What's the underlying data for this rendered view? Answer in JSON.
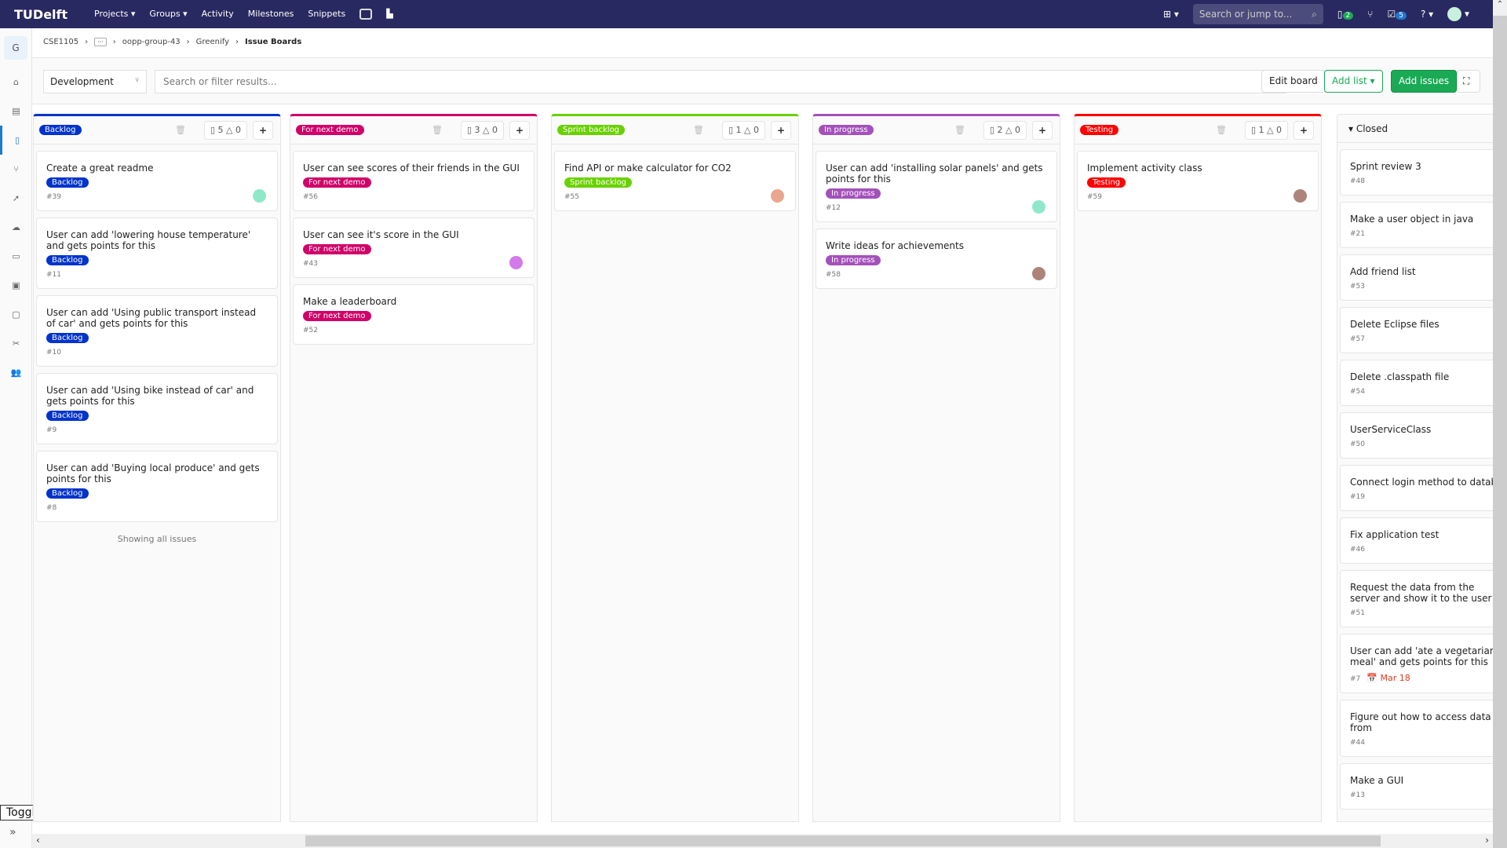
{
  "topbar": {
    "logo": "TUDelft",
    "nav": [
      "Projects ▾",
      "Groups ▾",
      "Activity",
      "Milestones",
      "Snippets"
    ],
    "search_placeholder": "Search or jump to...",
    "issues_badge": "2",
    "todos_badge": "5"
  },
  "sidebar": {
    "group_letter": "G",
    "toggle_label": "Toggle sidebar"
  },
  "breadcrumb": [
    "CSE1105",
    "oopp-group-43",
    "Greenify",
    "Issue Boards"
  ],
  "filter": {
    "board": "Development",
    "placeholder": "Search or filter results...",
    "edit_board": "Edit board",
    "add_list": "Add list",
    "add_issues": "Add issues"
  },
  "colors": {
    "Backlog": "#0033cc",
    "For next demo": "#d10069",
    "Sprint backlog": "#69d100",
    "In progress": "#a351ba",
    "Testing": "#ff0000",
    "accent_green": "#1aaa55"
  },
  "columns": [
    {
      "label": "Backlog",
      "issues": "5",
      "weight": "0",
      "footer": "Showing all issues",
      "cards": [
        {
          "title": "Create a great readme",
          "ref": "#39",
          "avatar": "#5fe0b0"
        },
        {
          "title": "User can add 'lowering house temperature' and gets points for this",
          "ref": "#11"
        },
        {
          "title": "User can add 'Using public transport instead of car' and gets points for this",
          "ref": "#10"
        },
        {
          "title": "User can add 'Using bike instead of car' and gets points for this",
          "ref": "#9"
        },
        {
          "title": "User can add 'Buying local produce' and gets points for this",
          "ref": "#8"
        }
      ]
    },
    {
      "label": "For next demo",
      "issues": "3",
      "weight": "0",
      "cards": [
        {
          "title": "User can see scores of their friends in the GUI",
          "ref": "#56"
        },
        {
          "title": "User can see it's score in the GUI",
          "ref": "#43",
          "avatar": "#c040e0"
        },
        {
          "title": "Make a leaderboard",
          "ref": "#52"
        }
      ]
    },
    {
      "label": "Sprint backlog",
      "issues": "1",
      "weight": "0",
      "cards": [
        {
          "title": "Find API or make calculator for CO2",
          "ref": "#55",
          "avatar": "#e08060"
        }
      ]
    },
    {
      "label": "In progress",
      "issues": "2",
      "weight": "0",
      "cards": [
        {
          "title": "User can add 'installing solar panels' and gets points for this",
          "ref": "#12",
          "avatar": "#5fe0b0"
        },
        {
          "title": "Write ideas for achievements",
          "ref": "#58",
          "avatar": "#8a5040"
        }
      ]
    },
    {
      "label": "Testing",
      "issues": "1",
      "weight": "0",
      "cards": [
        {
          "title": "Implement activity class",
          "ref": "#59",
          "avatar": "#8a5040"
        }
      ]
    }
  ],
  "closed": {
    "label": "Closed",
    "cards": [
      {
        "title": "Sprint review 3",
        "ref": "#48"
      },
      {
        "title": "Make a user object in java",
        "ref": "#21"
      },
      {
        "title": "Add friend list",
        "ref": "#53"
      },
      {
        "title": "Delete Eclipse files",
        "ref": "#57"
      },
      {
        "title": "Delete .classpath file",
        "ref": "#54"
      },
      {
        "title": "UserServiceClass",
        "ref": "#50"
      },
      {
        "title": "Connect login method to database",
        "ref": "#19"
      },
      {
        "title": "Fix application test",
        "ref": "#46"
      },
      {
        "title": "Request the data from the server and show it to the user",
        "ref": "#51"
      },
      {
        "title": "User can add 'ate a vegetarian meal' and gets points for this",
        "ref": "#7",
        "due": "Mar 18"
      },
      {
        "title": "Figure out how to access data from",
        "ref": "#44"
      },
      {
        "title": "Make a GUI",
        "ref": "#13"
      }
    ]
  }
}
